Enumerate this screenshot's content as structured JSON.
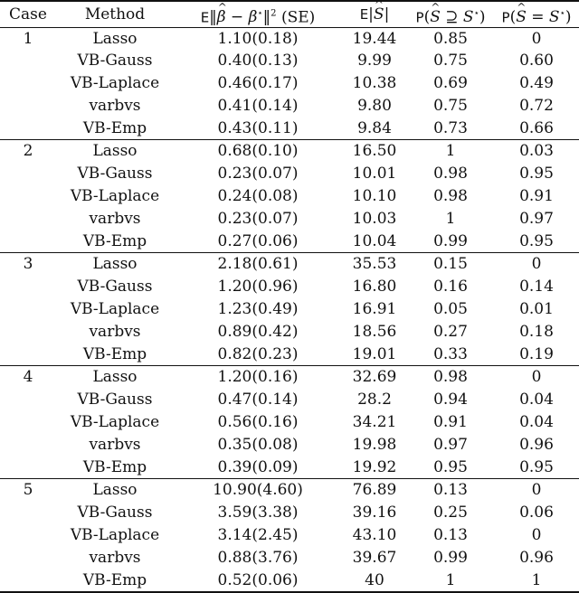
{
  "columns": {
    "case": "Case",
    "method": "Method",
    "error": {
      "prefix": "E",
      "suffix": "(SE)"
    },
    "size": "E",
    "superset": "P",
    "exact": "P"
  },
  "groups": [
    {
      "case": "1",
      "rows": [
        {
          "method": "Lasso",
          "error": "1.10(0.18)",
          "size": "19.44",
          "superset": "0.85",
          "exact": "0"
        },
        {
          "method": "VB-Gauss",
          "error": "0.40(0.13)",
          "size": "9.99",
          "superset": "0.75",
          "exact": "0.60"
        },
        {
          "method": "VB-Laplace",
          "error": "0.46(0.17)",
          "size": "10.38",
          "superset": "0.69",
          "exact": "0.49"
        },
        {
          "method": "varbvs",
          "error": "0.41(0.14)",
          "size": "9.80",
          "superset": "0.75",
          "exact": "0.72"
        },
        {
          "method": "VB-Emp",
          "error": "0.43(0.11)",
          "size": "9.84",
          "superset": "0.73",
          "exact": "0.66"
        }
      ]
    },
    {
      "case": "2",
      "rows": [
        {
          "method": "Lasso",
          "error": "0.68(0.10)",
          "size": "16.50",
          "superset": "1",
          "exact": "0.03"
        },
        {
          "method": "VB-Gauss",
          "error": "0.23(0.07)",
          "size": "10.01",
          "superset": "0.98",
          "exact": "0.95"
        },
        {
          "method": "VB-Laplace",
          "error": "0.24(0.08)",
          "size": "10.10",
          "superset": "0.98",
          "exact": "0.91"
        },
        {
          "method": "varbvs",
          "error": "0.23(0.07)",
          "size": "10.03",
          "superset": "1",
          "exact": "0.97"
        },
        {
          "method": "VB-Emp",
          "error": "0.27(0.06)",
          "size": "10.04",
          "superset": "0.99",
          "exact": "0.95"
        }
      ]
    },
    {
      "case": "3",
      "rows": [
        {
          "method": "Lasso",
          "error": "2.18(0.61)",
          "size": "35.53",
          "superset": "0.15",
          "exact": "0"
        },
        {
          "method": "VB-Gauss",
          "error": "1.20(0.96)",
          "size": "16.80",
          "superset": "0.16",
          "exact": "0.14"
        },
        {
          "method": "VB-Laplace",
          "error": "1.23(0.49)",
          "size": "16.91",
          "superset": "0.05",
          "exact": "0.01"
        },
        {
          "method": "varbvs",
          "error": "0.89(0.42)",
          "size": "18.56",
          "superset": "0.27",
          "exact": "0.18"
        },
        {
          "method": "VB-Emp",
          "error": "0.82(0.23)",
          "size": "19.01",
          "superset": "0.33",
          "exact": "0.19"
        }
      ]
    },
    {
      "case": "4",
      "rows": [
        {
          "method": "Lasso",
          "error": "1.20(0.16)",
          "size": "32.69",
          "superset": "0.98",
          "exact": "0"
        },
        {
          "method": "VB-Gauss",
          "error": "0.47(0.14)",
          "size": "28.2",
          "superset": "0.94",
          "exact": "0.04"
        },
        {
          "method": "VB-Laplace",
          "error": "0.56(0.16)",
          "size": "34.21",
          "superset": "0.91",
          "exact": "0.04"
        },
        {
          "method": "varbvs",
          "error": "0.35(0.08)",
          "size": "19.98",
          "superset": "0.97",
          "exact": "0.96"
        },
        {
          "method": "VB-Emp",
          "error": "0.39(0.09)",
          "size": "19.92",
          "superset": "0.95",
          "exact": "0.95"
        }
      ]
    },
    {
      "case": "5",
      "rows": [
        {
          "method": "Lasso",
          "error": "10.90(4.60)",
          "size": "76.89",
          "superset": "0.13",
          "exact": "0"
        },
        {
          "method": "VB-Gauss",
          "error": "3.59(3.38)",
          "size": "39.16",
          "superset": "0.25",
          "exact": "0.06"
        },
        {
          "method": "VB-Laplace",
          "error": "3.14(2.45)",
          "size": "43.10",
          "superset": "0.13",
          "exact": "0"
        },
        {
          "method": "varbvs",
          "error": "0.88(3.76)",
          "size": "39.67",
          "superset": "0.99",
          "exact": "0.96"
        },
        {
          "method": "VB-Emp",
          "error": "0.52(0.06)",
          "size": "40",
          "superset": "1",
          "exact": "1"
        }
      ]
    }
  ]
}
